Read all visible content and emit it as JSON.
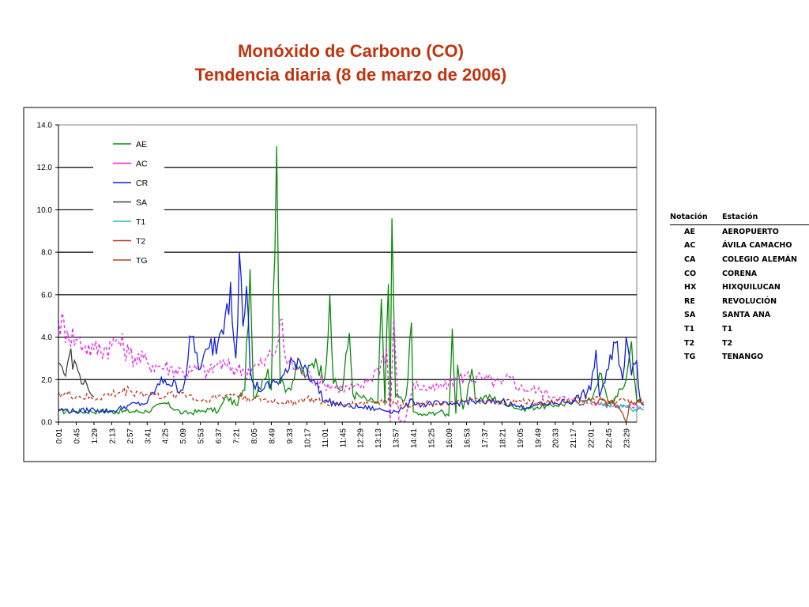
{
  "title": {
    "line1": "Monóxido de Carbono (CO)",
    "line2": "Tendencia diaria (8 de marzo de 2006)"
  },
  "colors": {
    "title": "#c0340e",
    "AE": "#0a8a0a",
    "AC": "#e826e8",
    "CR": "#1020d8",
    "SA": "#404040",
    "T1": "#20b8c8",
    "T2": "#c03018",
    "TG": "#b04818"
  },
  "station_table": {
    "headers": [
      "Notación",
      "Estación"
    ],
    "rows": [
      [
        "AE",
        "AEROPUERTO"
      ],
      [
        "AC",
        "ÁVILA CAMACHO"
      ],
      [
        "CA",
        "COLEGIO ALEMÁN"
      ],
      [
        "CO",
        "CORENA"
      ],
      [
        "HX",
        "HIXQUILUCAN"
      ],
      [
        "RE",
        "REVOLUCIÓN"
      ],
      [
        "SA",
        "SANTA ANA"
      ],
      [
        "T1",
        "T1"
      ],
      [
        "T2",
        "T2"
      ],
      [
        "TG",
        "TENANGO"
      ]
    ]
  },
  "chart_data": {
    "type": "line",
    "ylim": [
      0,
      14
    ],
    "y_ticks": [
      "0.0",
      "2.0",
      "4.0",
      "6.0",
      "8.0",
      "10.0",
      "12.0",
      "14.0"
    ],
    "grid": "horizontal",
    "legend_position": "top-left",
    "x_tick_labels": [
      "0:01",
      "0:45",
      "1:29",
      "2:13",
      "2:57",
      "3:41",
      "4:25",
      "5:09",
      "5:53",
      "6:37",
      "7:21",
      "8:05",
      "8:49",
      "9:33",
      "10:17",
      "11:01",
      "11:45",
      "12:29",
      "13:13",
      "13:57",
      "14:41",
      "15:25",
      "16:09",
      "16:53",
      "17:37",
      "18:21",
      "19:05",
      "19:49",
      "20:33",
      "21:17",
      "22:01",
      "22:45",
      "23:29"
    ],
    "series": [
      {
        "name": "AE",
        "dash": "solid",
        "points": [
          [
            0,
            0.5
          ],
          [
            5,
            0.5
          ],
          [
            6,
            0.9
          ],
          [
            7,
            0.4
          ],
          [
            8,
            0.5
          ],
          [
            8.5,
            0.6
          ],
          [
            9,
            0.5
          ],
          [
            9.5,
            1.2
          ],
          [
            10,
            0.8
          ],
          [
            10.5,
            1.5
          ],
          [
            10.8,
            7.2
          ],
          [
            11,
            1.2
          ],
          [
            11.5,
            2.0
          ],
          [
            11.8,
            2.5
          ],
          [
            12,
            1.5
          ],
          [
            12.3,
            13.0
          ],
          [
            12.5,
            1.8
          ],
          [
            13,
            1.6
          ],
          [
            13.5,
            2.5
          ],
          [
            14,
            2.2
          ],
          [
            14.5,
            3.0
          ],
          [
            15,
            2.0
          ],
          [
            15.3,
            6.0
          ],
          [
            15.5,
            1.8
          ],
          [
            16,
            1.5
          ],
          [
            16.4,
            4.2
          ],
          [
            16.6,
            1.3
          ],
          [
            17,
            1.2
          ],
          [
            17.5,
            1.0
          ],
          [
            18,
            0.9
          ],
          [
            18.2,
            5.8
          ],
          [
            18.4,
            0.8
          ],
          [
            18.6,
            6.5
          ],
          [
            18.7,
            0.9
          ],
          [
            18.8,
            9.6
          ],
          [
            19,
            1.2
          ],
          [
            19.5,
            1.0
          ],
          [
            19.7,
            2.0
          ],
          [
            19.9,
            4.7
          ],
          [
            20,
            0.5
          ],
          [
            20.5,
            0.3
          ],
          [
            21,
            0.4
          ],
          [
            21.5,
            0.5
          ],
          [
            22,
            0.3
          ],
          [
            22.2,
            4.4
          ],
          [
            22.4,
            0.4
          ],
          [
            22.5,
            2.7
          ],
          [
            22.8,
            0.6
          ],
          [
            23,
            1.0
          ],
          [
            23.3,
            2.5
          ],
          [
            23.5,
            1.0
          ],
          [
            24,
            1.2
          ],
          [
            25,
            1.0
          ],
          [
            25.5,
            0.8
          ],
          [
            26,
            0.6
          ],
          [
            27,
            0.7
          ],
          [
            28,
            0.8
          ],
          [
            29,
            0.9
          ],
          [
            30,
            1.0
          ],
          [
            30.5,
            2.3
          ],
          [
            31,
            0.9
          ],
          [
            31.5,
            1.2
          ],
          [
            32,
            2.0
          ],
          [
            32.3,
            3.8
          ],
          [
            32.6,
            1.0
          ],
          [
            33,
            0.8
          ]
        ]
      },
      {
        "name": "AC",
        "dash": "dashed",
        "points": [
          [
            0,
            4.8
          ],
          [
            0.5,
            4.3
          ],
          [
            1,
            3.9
          ],
          [
            1.5,
            3.6
          ],
          [
            2,
            3.4
          ],
          [
            3,
            3.6
          ],
          [
            3.3,
            3.9
          ],
          [
            4,
            3.2
          ],
          [
            5,
            2.8
          ],
          [
            6,
            2.6
          ],
          [
            7,
            2.4
          ],
          [
            7.5,
            2.4
          ],
          [
            8,
            2.5
          ],
          [
            8.5,
            2.3
          ],
          [
            9,
            2.8
          ],
          [
            9.5,
            2.6
          ],
          [
            10,
            2.5
          ],
          [
            10.5,
            2.4
          ],
          [
            11,
            2.6
          ],
          [
            11.5,
            2.7
          ],
          [
            12,
            3.2
          ],
          [
            12.3,
            3.5
          ],
          [
            12.5,
            4.8
          ],
          [
            12.8,
            3.0
          ],
          [
            13,
            2.8
          ],
          [
            13.5,
            2.5
          ],
          [
            14,
            2.2
          ],
          [
            15,
            1.8
          ],
          [
            16,
            1.6
          ],
          [
            17,
            1.6
          ],
          [
            17.5,
            2.0
          ],
          [
            18,
            2.5
          ],
          [
            18.5,
            3.5
          ],
          [
            18.7,
            0.0
          ],
          [
            18.9,
            4.9
          ],
          [
            19.2,
            0.0
          ],
          [
            19.5,
            0.0
          ],
          [
            20,
            1.8
          ],
          [
            21,
            1.5
          ],
          [
            22,
            1.8
          ],
          [
            22.5,
            2.0
          ],
          [
            23,
            2.2
          ],
          [
            24,
            2.0
          ],
          [
            25,
            1.8
          ],
          [
            25.5,
            2.1
          ],
          [
            26,
            1.6
          ],
          [
            27,
            1.5
          ],
          [
            28,
            1.2
          ],
          [
            29,
            1.0
          ],
          [
            30,
            0.9
          ],
          [
            31,
            0.8
          ],
          [
            32,
            0.8
          ],
          [
            33,
            0.7
          ]
        ]
      },
      {
        "name": "CR",
        "dash": "solid",
        "points": [
          [
            0,
            0.6
          ],
          [
            1,
            0.5
          ],
          [
            2,
            0.6
          ],
          [
            3,
            0.5
          ],
          [
            4,
            0.8
          ],
          [
            5,
            0.9
          ],
          [
            5.5,
            1.6
          ],
          [
            6,
            2.0
          ],
          [
            7,
            1.5
          ],
          [
            7.5,
            4.0
          ],
          [
            8,
            2.5
          ],
          [
            8.5,
            3.5
          ],
          [
            9,
            3.8
          ],
          [
            9.5,
            5.6
          ],
          [
            9.7,
            6.6
          ],
          [
            10,
            3.0
          ],
          [
            10.2,
            8.0
          ],
          [
            10.4,
            4.5
          ],
          [
            10.6,
            6.4
          ],
          [
            10.8,
            2.5
          ],
          [
            11,
            1.8
          ],
          [
            11.5,
            1.5
          ],
          [
            12,
            1.8
          ],
          [
            12.5,
            2.0
          ],
          [
            13,
            2.5
          ],
          [
            13.5,
            3.0
          ],
          [
            14,
            2.5
          ],
          [
            14.5,
            1.8
          ],
          [
            15,
            1.0
          ],
          [
            16,
            0.8
          ],
          [
            17,
            0.7
          ],
          [
            18,
            0.6
          ],
          [
            19,
            0.5
          ],
          [
            19.5,
            0.7
          ],
          [
            20,
            1.0
          ],
          [
            20.5,
            0.8
          ],
          [
            21,
            0.9
          ],
          [
            22,
            0.8
          ],
          [
            23,
            1.0
          ],
          [
            24,
            0.9
          ],
          [
            25,
            1.0
          ],
          [
            26,
            0.7
          ],
          [
            27,
            0.8
          ],
          [
            28,
            0.9
          ],
          [
            29,
            1.0
          ],
          [
            30,
            1.5
          ],
          [
            30.3,
            3.4
          ],
          [
            30.5,
            1.2
          ],
          [
            31,
            2.5
          ],
          [
            31.5,
            3.8
          ],
          [
            31.8,
            2.0
          ],
          [
            32,
            4.0
          ],
          [
            32.3,
            2.2
          ],
          [
            32.6,
            2.9
          ],
          [
            32.8,
            1.0
          ],
          [
            33,
            0.8
          ]
        ]
      },
      {
        "name": "SA",
        "dash": "solid",
        "points": [
          [
            0,
            2.8
          ],
          [
            0.3,
            2.3
          ],
          [
            0.6,
            3.1
          ],
          [
            0.9,
            2.9
          ],
          [
            1.1,
            2.4
          ],
          [
            1.3,
            1.8
          ],
          [
            1.5,
            2.0
          ],
          [
            1.7,
            1.5
          ],
          [
            2,
            1.2
          ]
        ]
      },
      {
        "name": "T1",
        "dash": "solid",
        "points": [
          [
            30.5,
            0.8
          ],
          [
            31,
            0.8
          ],
          [
            31.5,
            0.7
          ],
          [
            32,
            0.7
          ],
          [
            32.5,
            0.6
          ],
          [
            33,
            0.6
          ]
        ]
      },
      {
        "name": "T2",
        "dash": "dashed",
        "points": [
          [
            0,
            1.4
          ],
          [
            1,
            1.2
          ],
          [
            2,
            1.1
          ],
          [
            3,
            1.3
          ],
          [
            4,
            1.5
          ],
          [
            5,
            1.3
          ],
          [
            6,
            1.2
          ],
          [
            7,
            1.4
          ],
          [
            8,
            1.0
          ],
          [
            9,
            1.2
          ],
          [
            10,
            1.3
          ],
          [
            11,
            1.1
          ],
          [
            12,
            1.0
          ],
          [
            13,
            0.9
          ],
          [
            14,
            1.1
          ],
          [
            15,
            0.9
          ],
          [
            16,
            0.8
          ],
          [
            17,
            0.9
          ],
          [
            18,
            1.0
          ],
          [
            19,
            0.9
          ],
          [
            20,
            0.8
          ],
          [
            21,
            0.9
          ],
          [
            22,
            0.8
          ],
          [
            23,
            1.0
          ],
          [
            24,
            1.0
          ],
          [
            25,
            0.9
          ],
          [
            26,
            1.0
          ],
          [
            27,
            0.9
          ],
          [
            28,
            1.0
          ],
          [
            29,
            1.0
          ],
          [
            30,
            1.1
          ],
          [
            31,
            1.0
          ],
          [
            32,
            1.0
          ],
          [
            33,
            1.0
          ]
        ]
      },
      {
        "name": "TG",
        "dash": "solid",
        "points": [
          [
            30,
            1.0
          ],
          [
            31,
            0.9
          ],
          [
            31.5,
            0.8
          ],
          [
            32,
            0.0
          ],
          [
            32.2,
            0.9
          ],
          [
            33,
            0.8
          ]
        ]
      }
    ]
  }
}
